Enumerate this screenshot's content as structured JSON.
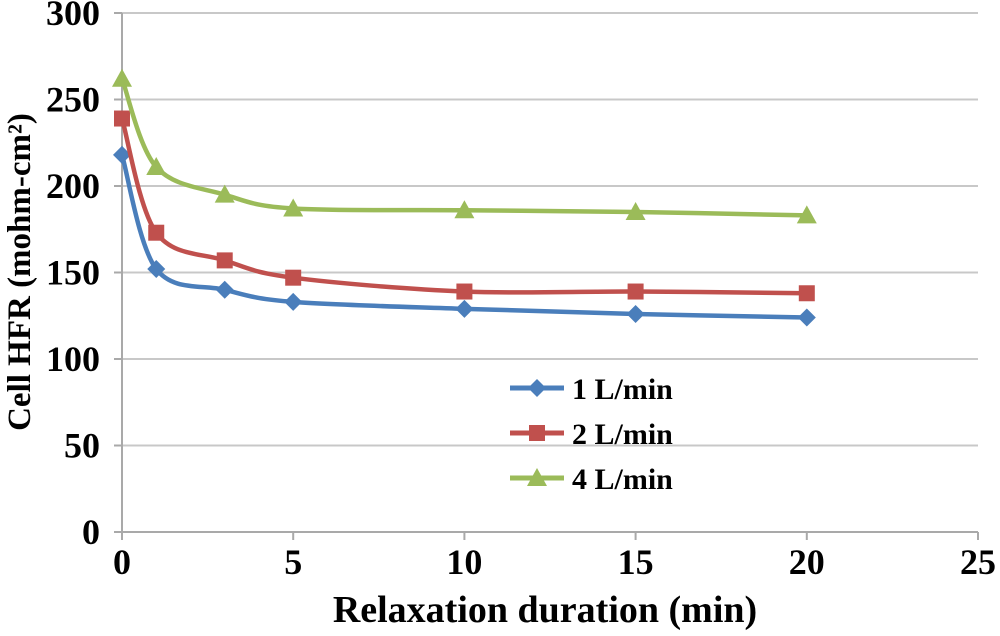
{
  "chart_data": {
    "type": "line",
    "title": "",
    "xlabel": "Relaxation duration (min)",
    "ylabel": "Cell HFR (mohm-cm²)",
    "x": [
      0,
      1,
      3,
      5,
      10,
      15,
      20
    ],
    "series": [
      {
        "name": "1 L/min",
        "marker": "diamond",
        "color": "#4A7EBB",
        "values": [
          218,
          152,
          140,
          133,
          129,
          126,
          124
        ]
      },
      {
        "name": "2 L/min",
        "marker": "square",
        "color": "#C0504D",
        "values": [
          239,
          173,
          157,
          147,
          139,
          139,
          138
        ]
      },
      {
        "name": "4 L/min",
        "marker": "triangle",
        "color": "#9BBB59",
        "values": [
          262,
          211,
          195,
          187,
          186,
          185,
          183
        ]
      }
    ],
    "xlim": [
      0,
      25
    ],
    "ylim": [
      0,
      300
    ],
    "x_ticks": [
      0,
      5,
      10,
      15,
      20,
      25
    ],
    "y_ticks": [
      0,
      50,
      100,
      150,
      200,
      250,
      300
    ],
    "grid": "horizontal",
    "legend_position": "inside-lower-center",
    "colors": {
      "gridline": "#C8C8C8",
      "axis": "#A9A9A9",
      "text": "#000000",
      "background": "#FFFFFF"
    }
  }
}
